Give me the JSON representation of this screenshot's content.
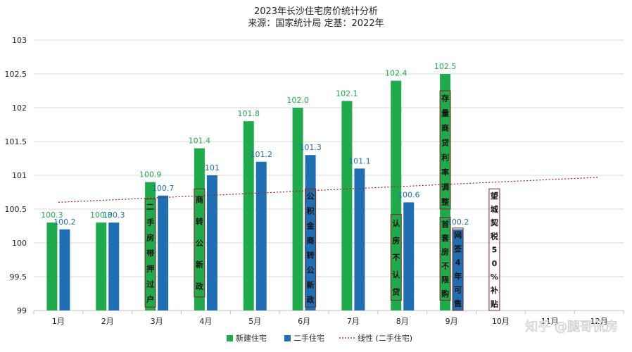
{
  "chart_data": {
    "type": "bar",
    "title": "2023年长沙住宅房价统计分析",
    "subtitle": "来源：国家统计局 定基：2022年",
    "categories": [
      "1月",
      "2月",
      "3月",
      "4月",
      "5月",
      "6月",
      "7月",
      "8月",
      "9月",
      "10月",
      "11月",
      "12月"
    ],
    "series": [
      {
        "name": "新建住宅",
        "color": "#1fab4b",
        "values": [
          100.3,
          100.3,
          100.9,
          101.4,
          101.8,
          102.0,
          102.1,
          102.4,
          102.5,
          null,
          null,
          null
        ],
        "labels": [
          "100.3",
          "100.3",
          "100.9",
          "101.4",
          "101.8",
          "102.0",
          "102.1",
          "102.4",
          "102.5",
          "",
          "",
          ""
        ]
      },
      {
        "name": "二手住宅",
        "color": "#1f6fb4",
        "values": [
          100.2,
          100.3,
          100.7,
          101.0,
          101.2,
          101.3,
          101.1,
          100.6,
          100.2,
          null,
          null,
          null
        ],
        "labels": [
          "100.2",
          "100.3",
          "100.7",
          "101",
          "101.2",
          "101.3",
          "101.1",
          "100.6",
          "100.2",
          "",
          "",
          ""
        ]
      }
    ],
    "trendline": {
      "name": "线性 (二手住宅)",
      "color": "#a02020",
      "start": 100.6,
      "end": 100.97
    },
    "yticks": [
      "99",
      "99.5",
      "100",
      "100.5",
      "101",
      "101.5",
      "102",
      "102.5",
      "103"
    ],
    "ylim": [
      99,
      103
    ],
    "grid": true,
    "legend_position": "bottom",
    "annotations": [
      {
        "text": "二手房带押过户",
        "month": 3,
        "series": 0,
        "top": 100.65,
        "bottom": 99.05
      },
      {
        "text": "商转公新政",
        "month": 4,
        "series": 0,
        "top": 100.8,
        "bottom": 99.2
      },
      {
        "text": "公积金商转公新政",
        "month": 6,
        "series": 1,
        "top": 100.8,
        "bottom": 99.05
      },
      {
        "text": "认房不认贷",
        "month": 8,
        "series": 0,
        "top": 100.42,
        "bottom": 99.15
      },
      {
        "text": "存量商贷利率调整",
        "month": 9,
        "series": 0,
        "top": 102.25,
        "bottom": 100.5
      },
      {
        "text": "首套房不限购",
        "month": 9,
        "series": 0,
        "top": 100.38,
        "bottom": 99.15
      },
      {
        "text": "网签4年可售",
        "month": 9,
        "series": 1,
        "top": 100.22,
        "bottom": 99.0
      },
      {
        "text": "望城契税50%补贴",
        "month": 10,
        "series": 0,
        "top": 100.8,
        "bottom": 99.0
      }
    ]
  },
  "colors": {
    "grid": "#d9d9d9",
    "axis": "#bfbfbf",
    "annotation_border": "#8b2020"
  },
  "watermark": "知乎 @腿哥侃房"
}
